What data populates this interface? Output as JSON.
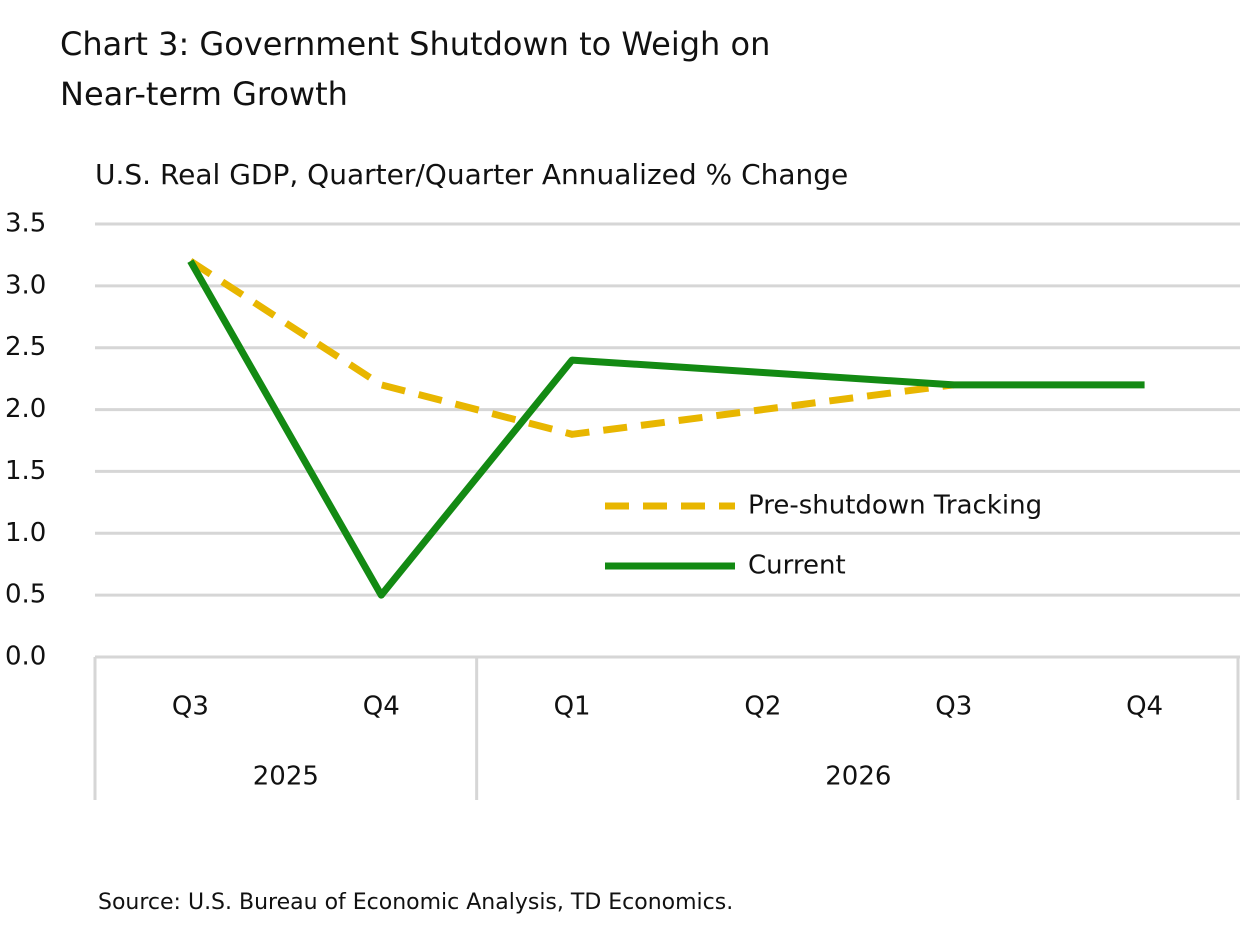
{
  "chart_data": {
    "type": "line",
    "title": "Chart 3: Government Shutdown to Weigh on Near-term Growth",
    "subtitle": "U.S. Real GDP, Quarter/Quarter Annualized % Change",
    "source": "Source: U.S. Bureau of Economic Analysis, TD Economics.",
    "categories": [
      "Q3",
      "Q4",
      "Q1",
      "Q2",
      "Q3",
      "Q4"
    ],
    "groups": [
      {
        "label": "2025",
        "span": 2
      },
      {
        "label": "2026",
        "span": 4
      }
    ],
    "series": [
      {
        "name": "Pre-shutdown Tracking",
        "color": "#e8b600",
        "dashed": true,
        "values": [
          3.2,
          2.2,
          1.8,
          2.0,
          2.2,
          null
        ]
      },
      {
        "name": "Current",
        "color": "#138a13",
        "dashed": false,
        "values": [
          3.2,
          0.5,
          2.4,
          2.3,
          2.2,
          2.2
        ]
      }
    ],
    "ylim": [
      0,
      3.5
    ],
    "yticks": [
      {
        "value": 0,
        "label": "0.0"
      },
      0.5,
      {
        "value": 1,
        "label": "1.0"
      },
      1.5,
      {
        "value": 2,
        "label": "2.0"
      },
      2.5,
      {
        "value": 3,
        "label": "3.0"
      },
      3.5
    ],
    "grid": true,
    "legend": "right"
  }
}
